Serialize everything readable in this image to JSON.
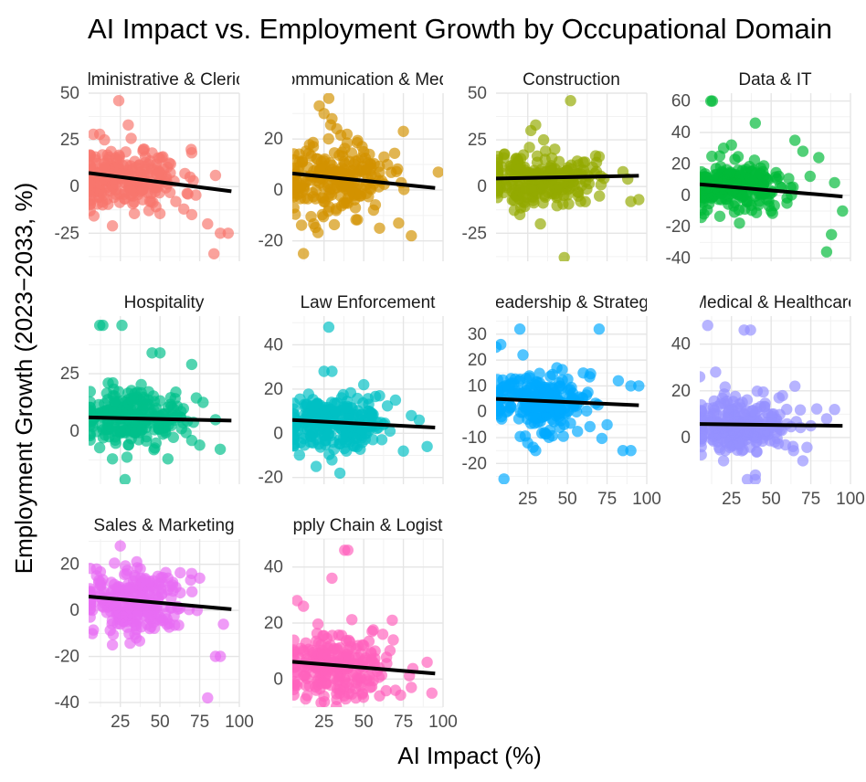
{
  "chart_data": {
    "type": "scatter",
    "title": "AI Impact vs. Employment Growth by Occupational Domain",
    "xlabel": "AI Impact (%)",
    "ylabel": "Employment Growth (2023−2033, %)",
    "xlim": [
      5,
      100
    ],
    "x_ticks": [
      25,
      50,
      75,
      100
    ],
    "fit_line_color": "#000000",
    "panels": [
      {
        "name": "Administrative & Clerical",
        "color": "#F8766D",
        "ylim": [
          -40,
          50
        ],
        "y_ticks": [
          -25,
          0,
          25,
          50
        ],
        "trend": [
          [
            5,
            7.3
          ],
          [
            95,
            -2.5
          ]
        ],
        "seed": 11,
        "count": 240,
        "xcenter": 28,
        "xspread": 18,
        "ycenter": 4,
        "yspread": 8,
        "points": [
          [
            24,
            46
          ],
          [
            30,
            33
          ],
          [
            8,
            28
          ],
          [
            12,
            28
          ],
          [
            15,
            25
          ],
          [
            85,
            6
          ],
          [
            60,
            -8
          ],
          [
            70,
            -15
          ],
          [
            65,
            -12
          ],
          [
            80,
            -20
          ],
          [
            88,
            -25
          ],
          [
            93,
            -25
          ],
          [
            84,
            -36
          ],
          [
            20,
            -21
          ],
          [
            40,
            20
          ],
          [
            45,
            18
          ],
          [
            50,
            15
          ]
        ]
      },
      {
        "name": "Communication & Media",
        "color": "#D39200",
        "ylim": [
          -28,
          38
        ],
        "y_ticks": [
          -20,
          0,
          20
        ],
        "trend": [
          [
            5,
            6.5
          ],
          [
            95,
            0.8
          ]
        ],
        "seed": 23,
        "count": 240,
        "xcenter": 30,
        "xspread": 18,
        "ycenter": 4,
        "yspread": 7,
        "points": [
          [
            28,
            36
          ],
          [
            22,
            33
          ],
          [
            25,
            30
          ],
          [
            30,
            28
          ],
          [
            33,
            24
          ],
          [
            12,
            -25
          ],
          [
            60,
            -15
          ],
          [
            72,
            -13
          ],
          [
            80,
            -18
          ],
          [
            75,
            23
          ],
          [
            97,
            7
          ],
          [
            65,
            10
          ],
          [
            50,
            15
          ]
        ]
      },
      {
        "name": "Construction",
        "color": "#93AA00",
        "ylim": [
          -40,
          50
        ],
        "y_ticks": [
          -25,
          0,
          25,
          50
        ],
        "trend": [
          [
            5,
            4.3
          ],
          [
            95,
            5.8
          ]
        ],
        "seed": 37,
        "count": 240,
        "xcenter": 30,
        "xspread": 18,
        "ycenter": 4,
        "yspread": 7,
        "points": [
          [
            52,
            46
          ],
          [
            30,
            33
          ],
          [
            27,
            30
          ],
          [
            35,
            25
          ],
          [
            42,
            20
          ],
          [
            48,
            -38
          ],
          [
            33,
            -20
          ],
          [
            20,
            -15
          ],
          [
            90,
            -8
          ],
          [
            95,
            -7
          ],
          [
            85,
            8
          ],
          [
            88,
            4
          ],
          [
            70,
            16
          ],
          [
            60,
            13
          ]
        ]
      },
      {
        "name": "Data & IT",
        "color": "#00BA38",
        "ylim": [
          -42,
          65
        ],
        "y_ticks": [
          -40,
          -20,
          0,
          20,
          40,
          60
        ],
        "trend": [
          [
            5,
            7
          ],
          [
            95,
            -0.8
          ]
        ],
        "seed": 53,
        "count": 230,
        "xcenter": 28,
        "xspread": 17,
        "ycenter": 5,
        "yspread": 8,
        "points": [
          [
            12,
            60
          ],
          [
            13,
            60
          ],
          [
            40,
            46
          ],
          [
            25,
            32
          ],
          [
            20,
            30
          ],
          [
            65,
            35
          ],
          [
            70,
            28
          ],
          [
            80,
            24
          ],
          [
            90,
            8
          ],
          [
            95,
            -10
          ],
          [
            88,
            -25
          ],
          [
            85,
            -36
          ],
          [
            60,
            -5
          ],
          [
            50,
            -10
          ]
        ]
      },
      {
        "name": "Hospitality",
        "color": "#00C08B",
        "ylim": [
          -23,
          50
        ],
        "y_ticks": [
          0,
          25
        ],
        "trend": [
          [
            5,
            6
          ],
          [
            95,
            4.6
          ]
        ],
        "seed": 67,
        "count": 240,
        "xcenter": 30,
        "xspread": 17,
        "ycenter": 5,
        "yspread": 6,
        "points": [
          [
            12,
            46
          ],
          [
            14,
            46
          ],
          [
            26,
            46
          ],
          [
            45,
            34
          ],
          [
            50,
            34
          ],
          [
            70,
            29
          ],
          [
            28,
            -21
          ],
          [
            20,
            -12
          ],
          [
            55,
            -12
          ],
          [
            75,
            -6
          ],
          [
            70,
            -4
          ],
          [
            85,
            5
          ],
          [
            60,
            17
          ],
          [
            40,
            14
          ]
        ]
      },
      {
        "name": "Law Enforcement",
        "color": "#00BFC4",
        "ylim": [
          -23,
          53
        ],
        "y_ticks": [
          -20,
          0,
          20,
          40
        ],
        "trend": [
          [
            5,
            6
          ],
          [
            95,
            2.6
          ]
        ],
        "seed": 79,
        "count": 240,
        "xcenter": 30,
        "xspread": 17,
        "ycenter": 5,
        "yspread": 6,
        "points": [
          [
            28,
            48
          ],
          [
            25,
            28
          ],
          [
            30,
            28
          ],
          [
            50,
            22
          ],
          [
            60,
            17
          ],
          [
            35,
            -18
          ],
          [
            20,
            -15
          ],
          [
            30,
            -12
          ],
          [
            80,
            8
          ],
          [
            85,
            6
          ],
          [
            90,
            -6
          ],
          [
            75,
            -8
          ],
          [
            70,
            15
          ]
        ]
      },
      {
        "name": "Leadership & Strategy",
        "color": "#00A9FF",
        "ylim": [
          -28,
          37
        ],
        "y_ticks": [
          -20,
          -10,
          0,
          10,
          20,
          30
        ],
        "trend": [
          [
            5,
            5
          ],
          [
            95,
            2.5
          ]
        ],
        "seed": 97,
        "count": 240,
        "xcenter": 30,
        "xspread": 17,
        "ycenter": 4,
        "yspread": 6,
        "points": [
          [
            20,
            32
          ],
          [
            70,
            32
          ],
          [
            5,
            25
          ],
          [
            8,
            26
          ],
          [
            22,
            22
          ],
          [
            10,
            -26
          ],
          [
            30,
            -15
          ],
          [
            25,
            -12
          ],
          [
            85,
            -15
          ],
          [
            90,
            -15
          ],
          [
            90,
            10
          ],
          [
            95,
            10
          ],
          [
            60,
            15
          ],
          [
            75,
            -5
          ]
        ]
      },
      {
        "name": "Medical & Healthcare",
        "color": "#9590FF",
        "ylim": [
          -20,
          52
        ],
        "y_ticks": [
          0,
          20,
          40
        ],
        "trend": [
          [
            5,
            5.8
          ],
          [
            95,
            5
          ]
        ],
        "seed": 113,
        "count": 240,
        "xcenter": 30,
        "xspread": 17,
        "ycenter": 5,
        "yspread": 6,
        "points": [
          [
            10,
            48
          ],
          [
            33,
            46
          ],
          [
            37,
            46
          ],
          [
            5,
            26
          ],
          [
            15,
            28
          ],
          [
            35,
            -18
          ],
          [
            40,
            -18
          ],
          [
            20,
            -10
          ],
          [
            70,
            -10
          ],
          [
            90,
            12
          ],
          [
            85,
            8
          ],
          [
            65,
            22
          ],
          [
            55,
            17
          ],
          [
            75,
            5
          ]
        ]
      },
      {
        "name": "Sales & Marketing",
        "color": "#E76BF3",
        "ylim": [
          -42,
          31
        ],
        "y_ticks": [
          -40,
          -20,
          0,
          20
        ],
        "trend": [
          [
            5,
            6
          ],
          [
            95,
            0.5
          ]
        ],
        "seed": 131,
        "count": 240,
        "xcenter": 30,
        "xspread": 17,
        "ycenter": 4,
        "yspread": 7,
        "points": [
          [
            25,
            28
          ],
          [
            70,
            16
          ],
          [
            75,
            14
          ],
          [
            10,
            18
          ],
          [
            85,
            -20
          ],
          [
            88,
            -20
          ],
          [
            80,
            -38
          ],
          [
            20,
            -15
          ],
          [
            35,
            -12
          ],
          [
            55,
            14
          ],
          [
            60,
            10
          ],
          [
            90,
            -6
          ]
        ]
      },
      {
        "name": "Supply Chain & Logistics",
        "color": "#FF62BC",
        "ylim": [
          -10,
          50
        ],
        "y_ticks": [
          0,
          20,
          40
        ],
        "trend": [
          [
            5,
            6.2
          ],
          [
            95,
            2
          ]
        ],
        "seed": 149,
        "count": 240,
        "xcenter": 30,
        "xspread": 17,
        "ycenter": 4,
        "yspread": 6,
        "points": [
          [
            38,
            46
          ],
          [
            40,
            46
          ],
          [
            30,
            36
          ],
          [
            8,
            28
          ],
          [
            12,
            26
          ],
          [
            68,
            21
          ],
          [
            62,
            16
          ],
          [
            60,
            -6
          ],
          [
            70,
            -4
          ],
          [
            90,
            6
          ],
          [
            93,
            -5
          ],
          [
            80,
            -3
          ],
          [
            50,
            12
          ]
        ]
      }
    ]
  }
}
